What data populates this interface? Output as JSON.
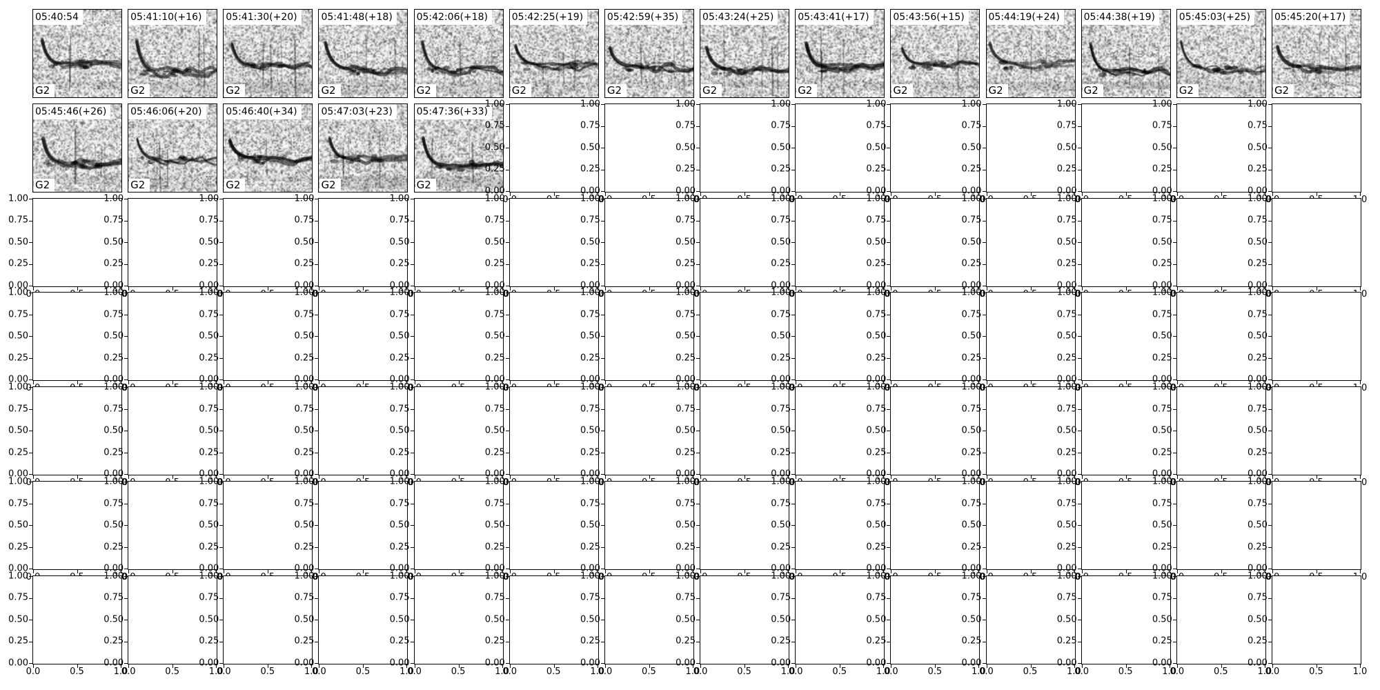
{
  "figure": {
    "background": "#ffffff",
    "text_color": "#000000",
    "spine_color": "#000000"
  },
  "panels": [
    {
      "title": "05:40:54",
      "label": "G2"
    },
    {
      "title": "05:41:10(+16)",
      "label": "G2"
    },
    {
      "title": "05:41:30(+20)",
      "label": "G2"
    },
    {
      "title": "05:41:48(+18)",
      "label": "G2"
    },
    {
      "title": "05:42:06(+18)",
      "label": "G2"
    },
    {
      "title": "05:42:25(+19)",
      "label": "G2"
    },
    {
      "title": "05:42:59(+35)",
      "label": "G2"
    },
    {
      "title": "05:43:24(+25)",
      "label": "G2"
    },
    {
      "title": "05:43:41(+17)",
      "label": "G2"
    },
    {
      "title": "05:43:56(+15)",
      "label": "G2"
    },
    {
      "title": "05:44:19(+24)",
      "label": "G2"
    },
    {
      "title": "05:44:38(+19)",
      "label": "G2"
    },
    {
      "title": "05:45:03(+25)",
      "label": "G2"
    },
    {
      "title": "05:45:20(+17)",
      "label": "G2"
    },
    {
      "title": "05:45:46(+26)",
      "label": "G2"
    },
    {
      "title": "05:46:06(+20)",
      "label": "G2"
    },
    {
      "title": "05:46:40(+34)",
      "label": "G2"
    },
    {
      "title": "05:47:03(+23)",
      "label": "G2"
    },
    {
      "title": "05:47:36(+33)",
      "label": "G2"
    }
  ],
  "axes": {
    "y_tick_labels": [
      "1.00",
      "0.75",
      "0.50",
      "0.25",
      "0.00"
    ],
    "x_tick_labels": [
      "0.0",
      "0.5",
      "1.0"
    ]
  },
  "chart_data": {
    "type": "heatmap",
    "title": "",
    "subtitle": "",
    "grid_rows": 7,
    "grid_cols": 14,
    "spectrogram_panel_count": 19,
    "empty_panel_count": 79,
    "panel_titles": [
      "05:40:54",
      "05:41:10(+16)",
      "05:41:30(+20)",
      "05:41:48(+18)",
      "05:42:06(+18)",
      "05:42:25(+19)",
      "05:42:59(+35)",
      "05:43:24(+25)",
      "05:43:41(+17)",
      "05:43:56(+15)",
      "05:44:19(+24)",
      "05:44:38(+19)",
      "05:45:03(+25)",
      "05:45:20(+17)",
      "05:45:46(+26)",
      "05:46:06(+20)",
      "05:46:40(+34)",
      "05:47:03(+23)",
      "05:47:36(+33)"
    ],
    "panel_annotation": "G2",
    "empty_axes": {
      "x_ticks": [
        0.0,
        0.5,
        1.0
      ],
      "y_ticks": [
        0.0,
        0.25,
        0.5,
        0.75,
        1.0
      ],
      "xlim": [
        0,
        1
      ],
      "ylim": [
        0,
        1
      ],
      "grid": false,
      "legend": "none"
    }
  }
}
